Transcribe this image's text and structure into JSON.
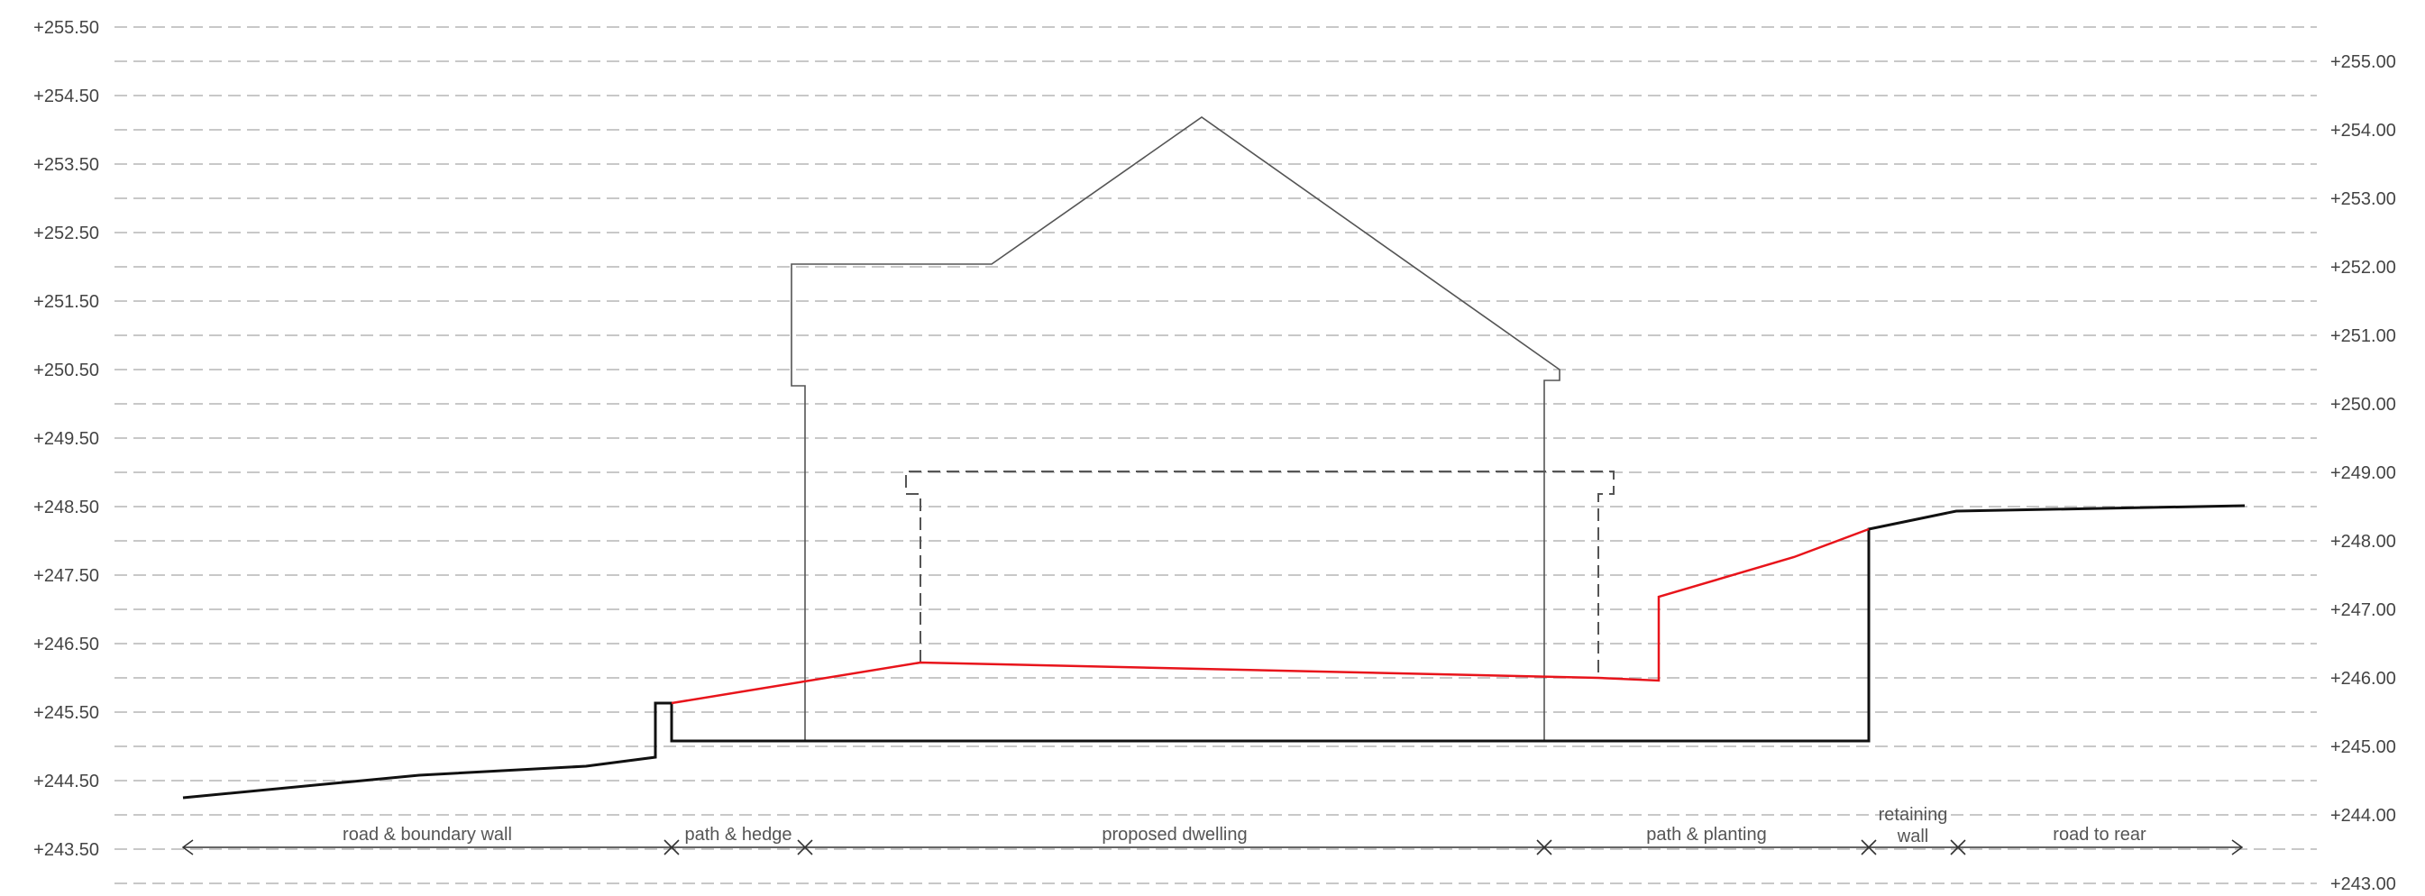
{
  "levels_left": [
    "+255.50",
    "+254.50",
    "+253.50",
    "+252.50",
    "+251.50",
    "+250.50",
    "+249.50",
    "+248.50",
    "+247.50",
    "+246.50",
    "+245.50",
    "+244.50",
    "+243.50"
  ],
  "levels_right": [
    "+255.00",
    "+254.00",
    "+253.00",
    "+252.00",
    "+251.00",
    "+250.00",
    "+249.00",
    "+248.00",
    "+247.00",
    "+246.00",
    "+245.00",
    "+244.00",
    "+243.00"
  ],
  "zones": [
    {
      "id": "road-boundary-wall",
      "lines": [
        "road & boundary wall"
      ]
    },
    {
      "id": "path-hedge",
      "lines": [
        "path & hedge"
      ]
    },
    {
      "id": "proposed-dwelling",
      "lines": [
        "proposed dwelling"
      ]
    },
    {
      "id": "path-planting",
      "lines": [
        "path & planting"
      ]
    },
    {
      "id": "retaining-wall",
      "lines": [
        "retaining",
        "wall"
      ]
    },
    {
      "id": "road-to-rear",
      "lines": [
        "road to rear"
      ]
    }
  ],
  "colors": {
    "existing_ground": "#111111",
    "proposed_ground": "#e8141b",
    "building_outline": "#555555",
    "gridline": "#b5b5b5"
  }
}
